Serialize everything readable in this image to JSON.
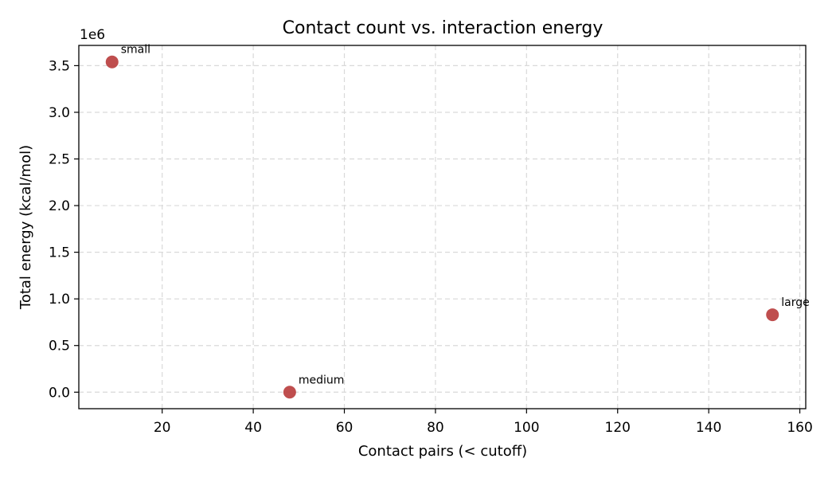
{
  "chart_data": {
    "type": "scatter",
    "title": "Contact count vs. interaction energy",
    "xlabel": "Contact pairs (< cutoff)",
    "ylabel": "Total energy (kcal/mol)",
    "y_offset_label": "1e6",
    "xlim": [
      1.7,
      161.3
    ],
    "ylim": [
      -0.177,
      3.717
    ],
    "x_ticks": [
      20,
      40,
      60,
      80,
      100,
      120,
      140,
      160
    ],
    "y_ticks": [
      0.0,
      0.5,
      1.0,
      1.5,
      2.0,
      2.5,
      3.0,
      3.5
    ],
    "x_tick_labels": [
      "20",
      "40",
      "60",
      "80",
      "100",
      "120",
      "140",
      "160"
    ],
    "y_tick_labels": [
      "0.0",
      "0.5",
      "1.0",
      "1.5",
      "2.0",
      "2.5",
      "3.0",
      "3.5"
    ],
    "grid": true,
    "points": [
      {
        "label": "small",
        "x": 9,
        "y": 3.54
      },
      {
        "label": "medium",
        "x": 48,
        "y": 0.0
      },
      {
        "label": "large",
        "x": 154,
        "y": 0.83
      }
    ],
    "colors": {
      "point": "#b83b3b"
    }
  }
}
